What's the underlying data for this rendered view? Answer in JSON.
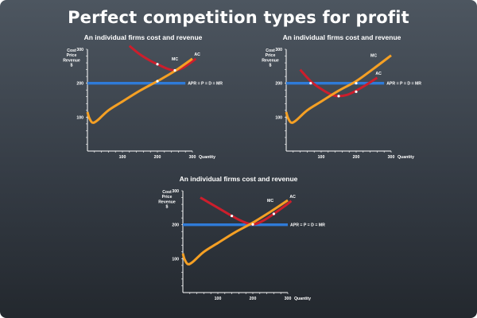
{
  "title": "Perfect competition types for profit",
  "colors": {
    "mc": "#f5a024",
    "ac": "#cc1e2c",
    "price": "#2f7bd8",
    "axis": "#ffffff",
    "marker": "#ffffff"
  },
  "axis_labels": {
    "y": [
      "Cost",
      "Price",
      "Revenue",
      "$"
    ],
    "x": "Quantity"
  },
  "chart_data": [
    {
      "type": "line",
      "title": "An individual firms cost  and revenue",
      "xlabel": "Quantity",
      "ylabel": "Cost Price Revenue $",
      "xlim": [
        0,
        300
      ],
      "ylim": [
        0,
        300
      ],
      "x_ticks": [
        "100",
        "200",
        "300"
      ],
      "y_ticks": [
        "100",
        "200",
        "300"
      ],
      "series": [
        {
          "name": "MC",
          "color": "#f5a024",
          "points": [
            [
              0,
              115
            ],
            [
              5,
              98
            ],
            [
              14,
              84
            ],
            [
              28,
              90
            ],
            [
              60,
              120
            ],
            [
              100,
              146
            ],
            [
              150,
              178
            ],
            [
              200,
              206
            ],
            [
              250,
              236
            ],
            [
              300,
              272
            ]
          ]
        },
        {
          "name": "AC",
          "color": "#cc1e2c",
          "points": [
            [
              120,
              310
            ],
            [
              150,
              285
            ],
            [
              180,
              266
            ],
            [
              200,
              256
            ],
            [
              230,
              242
            ],
            [
              250,
              238
            ],
            [
              270,
              244
            ],
            [
              290,
              257
            ],
            [
              310,
              272
            ]
          ]
        },
        {
          "name": "APR = P = D = MR",
          "color": "#2f7bd8",
          "points": [
            [
              0,
              200
            ],
            [
              280,
              200
            ]
          ]
        }
      ],
      "markers": [
        [
          200,
          256
        ],
        [
          250,
          238
        ],
        [
          200,
          206
        ]
      ]
    },
    {
      "type": "line",
      "title": "An individual firms cost  and revenue",
      "xlabel": "Quantity",
      "ylabel": "Cost Price Revenue $",
      "xlim": [
        0,
        300
      ],
      "ylim": [
        0,
        300
      ],
      "x_ticks": [
        "100",
        "200",
        "300"
      ],
      "y_ticks": [
        "100",
        "200",
        "300"
      ],
      "series": [
        {
          "name": "MC",
          "color": "#f5a024",
          "points": [
            [
              0,
              115
            ],
            [
              5,
              98
            ],
            [
              14,
              84
            ],
            [
              28,
              90
            ],
            [
              60,
              120
            ],
            [
              100,
              146
            ],
            [
              150,
              178
            ],
            [
              200,
              206
            ],
            [
              250,
              243
            ],
            [
              300,
              282
            ]
          ]
        },
        {
          "name": "AC",
          "color": "#cc1e2c",
          "points": [
            [
              40,
              240
            ],
            [
              70,
              206
            ],
            [
              100,
              183
            ],
            [
              130,
              166
            ],
            [
              150,
              162
            ],
            [
              175,
              166
            ],
            [
              200,
              178
            ],
            [
              230,
              196
            ],
            [
              260,
              216
            ]
          ]
        },
        {
          "name": "APR = P = D = MR",
          "color": "#2f7bd8",
          "points": [
            [
              0,
              200
            ],
            [
              280,
              200
            ]
          ]
        }
      ],
      "markers": [
        [
          70,
          200
        ],
        [
          150,
          162
        ],
        [
          200,
          175
        ],
        [
          200,
          200
        ]
      ]
    },
    {
      "type": "line",
      "title": "An individual firms cost  and revenue",
      "xlabel": "Quantity",
      "ylabel": "Cost Price Revenue $",
      "xlim": [
        0,
        300
      ],
      "ylim": [
        0,
        300
      ],
      "x_ticks": [
        "100",
        "200",
        "300"
      ],
      "y_ticks": [
        "100",
        "200",
        "300"
      ],
      "series": [
        {
          "name": "MC",
          "color": "#f5a024",
          "points": [
            [
              0,
              115
            ],
            [
              5,
              98
            ],
            [
              14,
              84
            ],
            [
              28,
              90
            ],
            [
              60,
              120
            ],
            [
              100,
              146
            ],
            [
              150,
              178
            ],
            [
              200,
              206
            ],
            [
              250,
              238
            ],
            [
              300,
              272
            ]
          ]
        },
        {
          "name": "AC",
          "color": "#cc1e2c",
          "points": [
            [
              50,
              280
            ],
            [
              100,
              250
            ],
            [
              140,
              226
            ],
            [
              170,
              210
            ],
            [
              200,
              201
            ],
            [
              230,
              212
            ],
            [
              260,
              232
            ],
            [
              290,
              254
            ],
            [
              310,
              270
            ]
          ]
        },
        {
          "name": "APR = P = D = MR",
          "color": "#2f7bd8",
          "points": [
            [
              0,
              200
            ],
            [
              300,
              200
            ]
          ]
        }
      ],
      "markers": [
        [
          140,
          226
        ],
        [
          200,
          201
        ],
        [
          260,
          232
        ]
      ]
    }
  ]
}
